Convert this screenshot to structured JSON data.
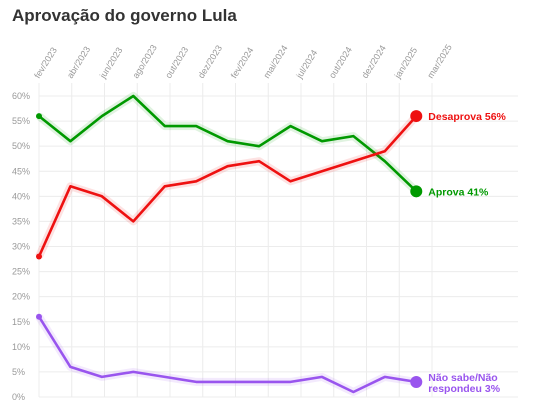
{
  "chart_data": {
    "type": "line",
    "title": "Aprovação do governo Lula",
    "x_ticks": [
      "fev/2023",
      "abr/2023",
      "jun/2023",
      "ago/2023",
      "out/2023",
      "dez/2023",
      "fev/2024",
      "mai/2024",
      "jul/2024",
      "out/2024",
      "dez/2024",
      "jan/2025",
      "mar/2025"
    ],
    "y_ticks": [
      "0%",
      "5%",
      "10%",
      "15%",
      "20%",
      "25%",
      "30%",
      "35%",
      "40%",
      "45%",
      "50%",
      "55%",
      "60%"
    ],
    "ylim": [
      0,
      60
    ],
    "x_range": [
      "2023-02",
      "2025-03"
    ],
    "grid": true,
    "series": [
      {
        "key": "aprova",
        "color": "#009900",
        "label": "Aprova 41%",
        "points": [
          [
            "2023-02",
            56
          ],
          [
            "2023-04",
            51
          ],
          [
            "2023-06",
            56
          ],
          [
            "2023-08",
            60
          ],
          [
            "2023-10",
            54
          ],
          [
            "2023-12",
            54
          ],
          [
            "2024-02",
            51
          ],
          [
            "2024-04",
            50
          ],
          [
            "2024-06",
            54
          ],
          [
            "2024-08",
            51
          ],
          [
            "2024-10",
            52
          ],
          [
            "2024-12",
            47
          ],
          [
            "2025-02",
            41
          ]
        ]
      },
      {
        "key": "desaprova",
        "color": "#ee1111",
        "label": "Desaprova 56%",
        "points": [
          [
            "2023-02",
            28
          ],
          [
            "2023-04",
            42
          ],
          [
            "2023-06",
            40
          ],
          [
            "2023-08",
            35
          ],
          [
            "2023-10",
            42
          ],
          [
            "2023-12",
            43
          ],
          [
            "2024-02",
            46
          ],
          [
            "2024-04",
            47
          ],
          [
            "2024-06",
            43
          ],
          [
            "2024-10",
            47
          ],
          [
            "2024-12",
            49
          ],
          [
            "2025-02",
            56
          ]
        ]
      },
      {
        "key": "nao_sabe",
        "color": "#9955ee",
        "label_lines": [
          "Não sabe/Não",
          "respondeu 3%"
        ],
        "points": [
          [
            "2023-02",
            16
          ],
          [
            "2023-04",
            6
          ],
          [
            "2023-06",
            4
          ],
          [
            "2023-08",
            5
          ],
          [
            "2023-10",
            4
          ],
          [
            "2023-12",
            3
          ],
          [
            "2024-02",
            3
          ],
          [
            "2024-04",
            3
          ],
          [
            "2024-06",
            3
          ],
          [
            "2024-08",
            4
          ],
          [
            "2024-10",
            1
          ],
          [
            "2024-12",
            4
          ],
          [
            "2025-02",
            3
          ]
        ]
      }
    ]
  }
}
